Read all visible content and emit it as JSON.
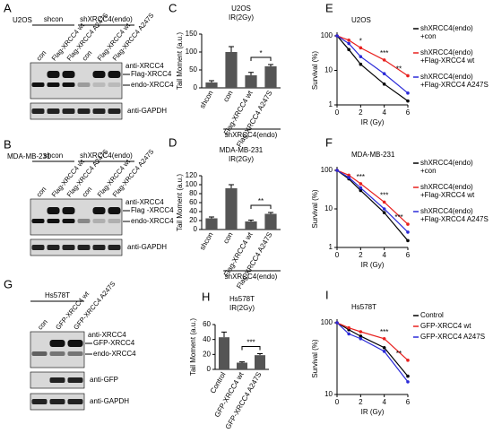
{
  "blots": [
    {
      "panel": "A",
      "cell_line": "U2OS",
      "groups": [
        "shcon",
        "shXRCC4(endo)"
      ],
      "lanes": [
        "con",
        "Flag-XRCC4 wt",
        "Flag-XRCC4 A247S",
        "con",
        "Flag-XRCC4 wt",
        "Flag-XRCC4 A247S"
      ],
      "bands": [
        "anti-XRCC4",
        "Flag-XRCC4",
        "endo-XRCC4",
        "anti-GAPDH"
      ]
    },
    {
      "panel": "B",
      "cell_line": "MDA-MB-231",
      "groups": [
        "shcon",
        "shXRCC4(endo)"
      ],
      "lanes": [
        "con",
        "Flag-XRCC4 wt",
        "Flag-XRCC4 A247S",
        "con",
        "Flag-XRCC4 wt",
        "Flag-XRCC4 A247S"
      ],
      "bands": [
        "anti-XRCC4",
        "Flag -XRCC4",
        "endo-XRCC4",
        "anti-GAPDH"
      ]
    },
    {
      "panel": "G",
      "cell_line": "Hs578T",
      "groups": [],
      "lanes": [
        "con",
        "GFP-XRCC4 wt",
        "GFP-XRCC4 A247S"
      ],
      "bands": [
        "anti-XRCC4",
        "GFP-XRCC4",
        "endo-XRCC4",
        "anti-GFP",
        "anti-GAPDH"
      ]
    }
  ],
  "chart_data": [
    {
      "type": "bar",
      "panel": "C",
      "title": "U2OS",
      "subtitle": "IR(2Gy)",
      "ylabel": "Tail Moment (a.u.)",
      "categories": [
        "shcon",
        "con",
        "Flag-XRCC4 wt",
        "Flag-XRCC4 A247S"
      ],
      "values": [
        15,
        100,
        35,
        60
      ],
      "errors": [
        5,
        15,
        8,
        5
      ],
      "group_label": "shXRCC4(endo)",
      "significance": "*",
      "color": "#555555",
      "ylim": [
        0,
        150
      ],
      "yticks": [
        0,
        50,
        100,
        150
      ]
    },
    {
      "type": "bar",
      "panel": "D",
      "title": "MDA-MB-231",
      "subtitle": "IR(2Gy)",
      "ylabel": "Tail Moment (a.u.)",
      "categories": [
        "shcon",
        "con",
        "Flag-XRCC4 wt",
        "Flag-XRCC4 A247S"
      ],
      "values": [
        25,
        92,
        18,
        35
      ],
      "errors": [
        3,
        8,
        3,
        3
      ],
      "group_label": "shXRCC4(endo)",
      "significance": "**",
      "color": "#555555",
      "ylim": [
        0,
        120
      ],
      "yticks": [
        0,
        20,
        40,
        60,
        80,
        100,
        120
      ]
    },
    {
      "type": "bar",
      "panel": "H",
      "title": "Hs578T",
      "subtitle": "IR(2Gy)",
      "ylabel": "Tail Moment (a.u.)",
      "categories": [
        "Control",
        "GFP-XRCC4 wt",
        "GFP-XRCC4 A247S"
      ],
      "values": [
        43,
        9,
        19
      ],
      "errors": [
        7,
        1,
        2
      ],
      "significance": "***",
      "color": "#555555",
      "ylim": [
        0,
        60
      ],
      "yticks": [
        0,
        20,
        40,
        60
      ]
    },
    {
      "type": "line",
      "panel": "E",
      "title": "U2OS",
      "xlabel": "IR (Gy)",
      "ylabel": "Survival (%)",
      "log_y": true,
      "x": [
        0,
        1,
        2,
        4,
        6
      ],
      "xlim": [
        0,
        6
      ],
      "xticks": [
        0,
        2,
        4,
        6
      ],
      "ylim": [
        1,
        100
      ],
      "yticks": [
        1,
        10,
        100
      ],
      "series": [
        {
          "name": "shXRCC4(endo)\n+con",
          "color": "#000000",
          "values": [
            100,
            40,
            15,
            4,
            1.3
          ]
        },
        {
          "name": "shXRCC4(endo)\n+Flag-XRCC4 wt",
          "color": "#e8201e",
          "values": [
            100,
            75,
            45,
            20,
            7
          ]
        },
        {
          "name": "shXRCC4(endo)\n+Flag-XRCC4 A247S",
          "color": "#2a2ad8",
          "values": [
            100,
            60,
            25,
            8,
            2.2
          ]
        }
      ],
      "annotations": [
        {
          "text": "*",
          "x": 2
        },
        {
          "text": "***",
          "x": 4
        },
        {
          "text": "**",
          "x": 6
        }
      ]
    },
    {
      "type": "line",
      "panel": "F",
      "title": "MDA-MB-231",
      "xlabel": "IR (Gy)",
      "ylabel": "Survival (%)",
      "log_y": true,
      "x": [
        0,
        1,
        2,
        4,
        6
      ],
      "xlim": [
        0,
        6
      ],
      "xticks": [
        0,
        2,
        4,
        6
      ],
      "ylim": [
        1,
        100
      ],
      "yticks": [
        1,
        10,
        100
      ],
      "series": [
        {
          "name": "shXRCC4(endo)\n+con",
          "color": "#000000",
          "values": [
            100,
            60,
            30,
            8,
            1.5
          ]
        },
        {
          "name": "shXRCC4(endo)\n+Flag-XRCC4 wt",
          "color": "#e8201e",
          "values": [
            100,
            75,
            45,
            15,
            4
          ]
        },
        {
          "name": "shXRCC4(endo)\n+Flag-XRCC4 A247S",
          "color": "#2a2ad8",
          "values": [
            100,
            65,
            35,
            10,
            2.5
          ]
        }
      ],
      "annotations": [
        {
          "text": "***",
          "x": 2
        },
        {
          "text": "***",
          "x": 4
        },
        {
          "text": "***",
          "x": 6
        }
      ]
    },
    {
      "type": "line",
      "panel": "I",
      "title": "Hs578T",
      "xlabel": "IR (Gy)",
      "ylabel": "Survival (%)",
      "log_y": true,
      "x": [
        0,
        1,
        2,
        4,
        6
      ],
      "xlim": [
        0,
        6
      ],
      "xticks": [
        0,
        2,
        4,
        6
      ],
      "ylim": [
        10,
        100
      ],
      "yticks": [
        10,
        100
      ],
      "series": [
        {
          "name": "Control",
          "color": "#000000",
          "values": [
            100,
            80,
            65,
            45,
            18
          ]
        },
        {
          "name": "GFP-XRCC4 wt",
          "color": "#e8201e",
          "values": [
            100,
            85,
            75,
            60,
            30
          ]
        },
        {
          "name": "GFP-XRCC4 A247S",
          "color": "#2a2ad8",
          "values": [
            100,
            70,
            60,
            40,
            15
          ]
        }
      ],
      "annotations": [
        {
          "text": "***",
          "x": 4
        },
        {
          "text": "**",
          "x": 6
        }
      ]
    }
  ]
}
